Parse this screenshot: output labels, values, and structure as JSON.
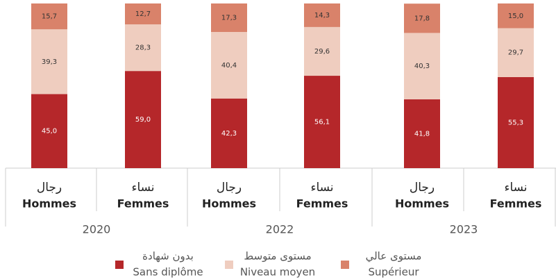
{
  "chart_data": {
    "type": "stacked_bar",
    "categories": [
      {
        "ar": "رجال",
        "fr": "Hommes"
      },
      {
        "ar": "نساء",
        "fr": "Femmes"
      },
      {
        "ar": "رجال",
        "fr": "Hommes"
      },
      {
        "ar": "نساء",
        "fr": "Femmes"
      },
      {
        "ar": "رجال",
        "fr": "Hommes"
      },
      {
        "ar": "نساء",
        "fr": "Femmes"
      }
    ],
    "groups": [
      "2020",
      "2022",
      "2023"
    ],
    "ylim": [
      0,
      100
    ],
    "series": [
      {
        "name": "Sans diplôme",
        "name_ar": "بدون شهادة",
        "color": "#b5272a",
        "label_color": "#ffffff",
        "values": [
          45.0,
          59.0,
          42.3,
          56.1,
          41.8,
          55.3
        ],
        "value_labels": [
          "45,0",
          "59,0",
          "42,3",
          "56,1",
          "41,8",
          "55,3"
        ]
      },
      {
        "name": "Niveau moyen",
        "name_ar": "مستوى متوسط",
        "color": "#efcdbf",
        "label_color": "#333333",
        "values": [
          39.3,
          28.3,
          40.4,
          29.6,
          40.3,
          29.7
        ],
        "value_labels": [
          "39,3",
          "28,3",
          "40,4",
          "29,6",
          "40,3",
          "29,7"
        ]
      },
      {
        "name": "Supérieur",
        "name_ar": "مستوى عالي",
        "color": "#d9826a",
        "label_color": "#333333",
        "values": [
          15.7,
          12.7,
          17.3,
          14.3,
          17.8,
          15.0
        ],
        "value_labels": [
          "15,7",
          "12,7",
          "17,3",
          "14,3",
          "17,8",
          "15,0"
        ]
      }
    ]
  }
}
